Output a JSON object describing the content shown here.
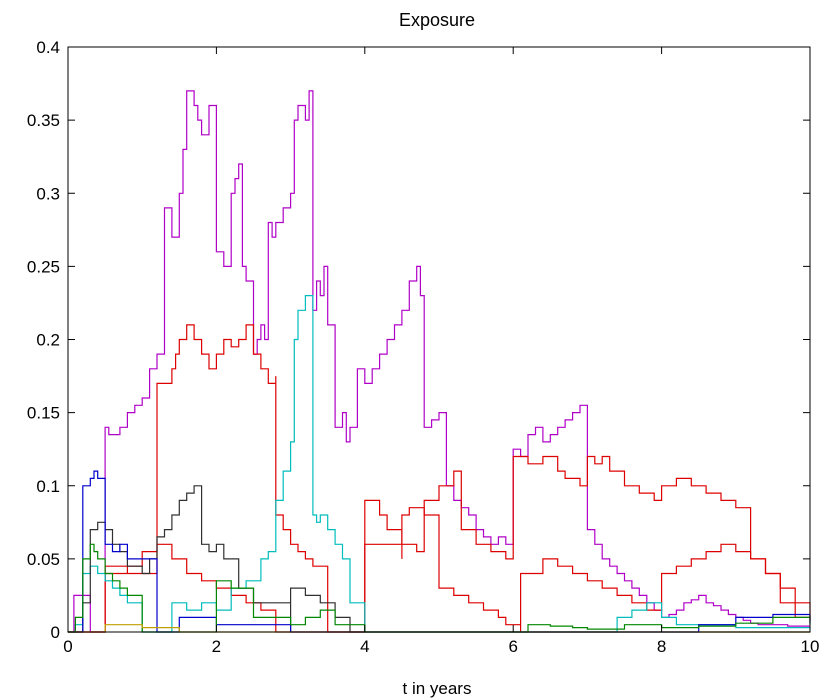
{
  "chart_data": {
    "type": "line",
    "title": "Exposure",
    "xlabel": "t in years",
    "ylabel": "",
    "xlim": [
      0,
      10
    ],
    "ylim": [
      0,
      0.4
    ],
    "xticks": [
      0,
      2,
      4,
      6,
      8,
      10
    ],
    "xtick_labels": [
      "0",
      "2",
      "4",
      "6",
      "8",
      "10"
    ],
    "yticks": [
      0,
      0.05,
      0.1,
      0.15,
      0.2,
      0.25,
      0.3,
      0.35,
      0.4
    ],
    "ytick_labels": [
      "0",
      "0.05",
      "0.1",
      "0.15",
      "0.2",
      "0.25",
      "0.3",
      "0.35",
      "0.4"
    ],
    "grid": false,
    "legend": "none",
    "series": [
      {
        "color": "#b000c8",
        "x": [
          0,
          0.08,
          0.08,
          0.3,
          0.3,
          0.5,
          0.5,
          0.55,
          0.7,
          0.8,
          0.9,
          1.0,
          1.1,
          1.2,
          1.3,
          1.3,
          1.4,
          1.5,
          1.55,
          1.6,
          1.7,
          1.75,
          1.8,
          1.9,
          2.0,
          2.0,
          2.1,
          2.2,
          2.25,
          2.3,
          2.35,
          2.4,
          2.5,
          2.55,
          2.6,
          2.65,
          2.7,
          2.75,
          2.8,
          2.9,
          3.0,
          3.05,
          3.1,
          3.2,
          3.25,
          3.3,
          3.35,
          3.4,
          3.45,
          3.5,
          3.6,
          3.7,
          3.75,
          3.8,
          3.9,
          4.0,
          4.1,
          4.2,
          4.3,
          4.4,
          4.5,
          4.6,
          4.7,
          4.75,
          4.8,
          4.9,
          5.0,
          5.1,
          5.2,
          5.3,
          5.4,
          5.5,
          5.6,
          5.7,
          5.8,
          5.9,
          6.0,
          6.1,
          6.2,
          6.3,
          6.4,
          6.5,
          6.6,
          6.7,
          6.8,
          6.9,
          7.0,
          7.1,
          7.2,
          7.3,
          7.4,
          7.5,
          7.6,
          7.7,
          7.8,
          7.9,
          8.0,
          8.1,
          8.2,
          8.3,
          8.4,
          8.5,
          8.6,
          8.7,
          8.8,
          8.9,
          9.0,
          9.1,
          9.2,
          9.3,
          9.5,
          9.7,
          10.0
        ],
        "y": [
          0,
          0,
          0.025,
          0.025,
          0.0,
          0.0,
          0.14,
          0.135,
          0.14,
          0.15,
          0.155,
          0.16,
          0.18,
          0.19,
          0.22,
          0.29,
          0.27,
          0.3,
          0.33,
          0.37,
          0.36,
          0.35,
          0.34,
          0.36,
          0.33,
          0.26,
          0.25,
          0.3,
          0.31,
          0.32,
          0.25,
          0.24,
          0.19,
          0.2,
          0.21,
          0.2,
          0.28,
          0.27,
          0.28,
          0.29,
          0.3,
          0.35,
          0.36,
          0.35,
          0.37,
          0.22,
          0.24,
          0.23,
          0.25,
          0.21,
          0.14,
          0.15,
          0.13,
          0.14,
          0.18,
          0.17,
          0.18,
          0.19,
          0.2,
          0.21,
          0.22,
          0.24,
          0.25,
          0.23,
          0.14,
          0.145,
          0.15,
          0.1,
          0.09,
          0.085,
          0.08,
          0.07,
          0.065,
          0.06,
          0.065,
          0.06,
          0.125,
          0.12,
          0.135,
          0.14,
          0.13,
          0.135,
          0.14,
          0.145,
          0.15,
          0.155,
          0.07,
          0.06,
          0.05,
          0.045,
          0.04,
          0.035,
          0.03,
          0.025,
          0.02,
          0.015,
          0.01,
          0.012,
          0.015,
          0.02,
          0.022,
          0.025,
          0.02,
          0.018,
          0.015,
          0.012,
          0.01,
          0.008,
          0.006,
          0.005,
          0.005,
          0.004,
          0.004
        ]
      },
      {
        "color": "#dd0000",
        "x": [
          0,
          0.5,
          0.5,
          0.8,
          0.8,
          1.0,
          1.0,
          1.2,
          1.2,
          1.4,
          1.45,
          1.5,
          1.6,
          1.7,
          1.8,
          1.9,
          2.0,
          2.1,
          2.2,
          2.3,
          2.4,
          2.5,
          2.6,
          2.7,
          2.8,
          2.8,
          2.9,
          3.0,
          3.1,
          3.2,
          3.25,
          3.3,
          3.5,
          3.5,
          3.7,
          3.9,
          4.0,
          4.0,
          4.2,
          4.3,
          4.5,
          4.7,
          4.8,
          4.8,
          5.0,
          5.2,
          5.3,
          5.5,
          5.7,
          5.9,
          6.0,
          6.0,
          6.2,
          6.4,
          6.6,
          6.7,
          6.9,
          7.0,
          7.1,
          7.2,
          7.3,
          7.5,
          7.7,
          7.9,
          8.0,
          8.2,
          8.4,
          8.6,
          8.8,
          9.0,
          9.2,
          9.4,
          9.6,
          9.8,
          10.0
        ],
        "y": [
          0,
          0,
          0.045,
          0.04,
          0.045,
          0.05,
          0.055,
          0.06,
          0.17,
          0.18,
          0.19,
          0.2,
          0.21,
          0.2,
          0.19,
          0.18,
          0.19,
          0.2,
          0.195,
          0.2,
          0.21,
          0.19,
          0.18,
          0.17,
          0.175,
          0.08,
          0.07,
          0.06,
          0.055,
          0.05,
          0.05,
          0.045,
          0.04,
          0.0,
          0.0,
          0.0,
          0.0,
          0.09,
          0.08,
          0.07,
          0.06,
          0.055,
          0.06,
          0.09,
          0.1,
          0.11,
          0.07,
          0.06,
          0.055,
          0.05,
          0.05,
          0.12,
          0.115,
          0.12,
          0.11,
          0.105,
          0.1,
          0.12,
          0.115,
          0.12,
          0.11,
          0.1,
          0.095,
          0.09,
          0.1,
          0.105,
          0.1,
          0.095,
          0.09,
          0.085,
          0.05,
          0.04,
          0.02,
          0.01,
          0.008
        ]
      },
      {
        "color": "#dd0000",
        "x": [
          0,
          0.5,
          0.5,
          1.2,
          1.2,
          1.4,
          1.6,
          1.8,
          2.0,
          2.2,
          2.4,
          2.6,
          2.8,
          2.8,
          3.0,
          3.2,
          3.4,
          3.6,
          3.8,
          4.0,
          4.0,
          4.5,
          4.5,
          4.6,
          4.8,
          5.0,
          5.2,
          5.4,
          5.6,
          5.8,
          5.9,
          6.1,
          6.1,
          6.4,
          6.6,
          6.8,
          7.0,
          7.2,
          7.4,
          7.6,
          7.8,
          8.0,
          8.2,
          8.4,
          8.6,
          8.8,
          9.0,
          9.2,
          9.4,
          9.6,
          9.8,
          10.0
        ],
        "y": [
          0,
          0,
          0.04,
          0.04,
          0.06,
          0.05,
          0.04,
          0.035,
          0.03,
          0.025,
          0.02,
          0.015,
          0.01,
          0.0,
          0.0,
          0.0,
          0.0,
          0.0,
          0.0,
          0.0,
          0.06,
          0.05,
          0.08,
          0.085,
          0.08,
          0.03,
          0.025,
          0.02,
          0.015,
          0.01,
          0.005,
          0.0,
          0.04,
          0.05,
          0.045,
          0.04,
          0.035,
          0.03,
          0.025,
          0.02,
          0.015,
          0.04,
          0.045,
          0.05,
          0.055,
          0.06,
          0.055,
          0.05,
          0.04,
          0.03,
          0.02,
          0.01
        ]
      },
      {
        "color": "#00bcbc",
        "x": [
          0,
          0.1,
          0.2,
          0.3,
          0.4,
          0.5,
          0.6,
          0.7,
          0.8,
          1.0,
          1.0,
          1.2,
          1.4,
          1.6,
          1.8,
          2.0,
          2.2,
          2.4,
          2.6,
          2.7,
          2.8,
          2.9,
          3.0,
          3.05,
          3.1,
          3.2,
          3.3,
          3.35,
          3.4,
          3.5,
          3.6,
          3.7,
          3.8,
          4.0,
          5.0,
          6.0,
          7.0,
          7.4,
          7.6,
          7.8,
          8.0,
          8.2,
          9.0,
          10.0
        ],
        "y": [
          0,
          0.005,
          0.04,
          0.045,
          0.04,
          0.035,
          0.03,
          0.025,
          0.02,
          0.015,
          0.0,
          0.0,
          0.02,
          0.015,
          0.02,
          0.015,
          0.03,
          0.035,
          0.05,
          0.055,
          0.09,
          0.11,
          0.13,
          0.2,
          0.22,
          0.23,
          0.08,
          0.075,
          0.08,
          0.07,
          0.06,
          0.05,
          0.02,
          0.0,
          0.0,
          0.0,
          0.0,
          0.01,
          0.015,
          0.02,
          0.01,
          0.005,
          0.003,
          0.002
        ]
      },
      {
        "color": "#303030",
        "x": [
          0,
          0.2,
          0.3,
          0.4,
          0.5,
          0.6,
          0.7,
          0.8,
          1.0,
          1.1,
          1.2,
          1.3,
          1.4,
          1.5,
          1.6,
          1.7,
          1.8,
          1.9,
          2.0,
          2.1,
          2.3,
          2.5,
          3.0,
          3.0,
          3.2,
          3.4,
          3.6,
          3.8,
          4.0,
          10.0
        ],
        "y": [
          0,
          0.02,
          0.07,
          0.075,
          0.07,
          0.06,
          0.055,
          0.045,
          0.04,
          0.05,
          0.065,
          0.07,
          0.08,
          0.09,
          0.095,
          0.1,
          0.06,
          0.055,
          0.06,
          0.05,
          0.03,
          0.02,
          0.0,
          0.03,
          0.025,
          0.02,
          0.01,
          0.0,
          0.0,
          0.0
        ]
      },
      {
        "color": "#0000cc",
        "x": [
          0,
          0.2,
          0.2,
          0.3,
          0.35,
          0.4,
          0.5,
          0.6,
          0.7,
          0.8,
          1.2,
          1.2,
          1.5,
          1.5,
          2.0,
          3.0,
          3.5,
          6.0,
          7.0,
          8.0,
          8.5,
          9.0,
          9.5,
          10.0
        ],
        "y": [
          0,
          0.02,
          0.1,
          0.105,
          0.11,
          0.105,
          0.06,
          0.055,
          0.06,
          0.05,
          0.0,
          0.0,
          0.0,
          0.01,
          0.005,
          0.0,
          0.0,
          0.0,
          0.0,
          0.0,
          0.005,
          0.01,
          0.012,
          0.006
        ]
      },
      {
        "color": "#008800",
        "x": [
          0,
          0.1,
          0.2,
          0.3,
          0.35,
          0.4,
          0.5,
          0.6,
          0.7,
          0.8,
          1.0,
          1.6,
          2.0,
          2.0,
          2.2,
          2.5,
          3.0,
          3.2,
          3.4,
          3.6,
          4.0,
          6.0,
          6.2,
          6.5,
          6.8,
          7.0,
          7.5,
          8.0,
          8.5,
          9.0,
          9.5,
          10.0
        ],
        "y": [
          0,
          0.01,
          0.05,
          0.06,
          0.055,
          0.05,
          0.04,
          0.035,
          0.03,
          0.025,
          0.0,
          0.0,
          0.03,
          0.035,
          0.03,
          0.01,
          0.005,
          0.01,
          0.015,
          0.005,
          0.0,
          0.0,
          0.005,
          0.004,
          0.003,
          0.002,
          0.005,
          0.003,
          0.004,
          0.006,
          0.01,
          0.005
        ]
      },
      {
        "color": "#c0a000",
        "x": [
          0,
          0.5,
          1.0,
          1.5,
          2.0,
          10.0
        ],
        "y": [
          0,
          0.005,
          0.003,
          0.0,
          0.0,
          0.0
        ]
      }
    ]
  }
}
